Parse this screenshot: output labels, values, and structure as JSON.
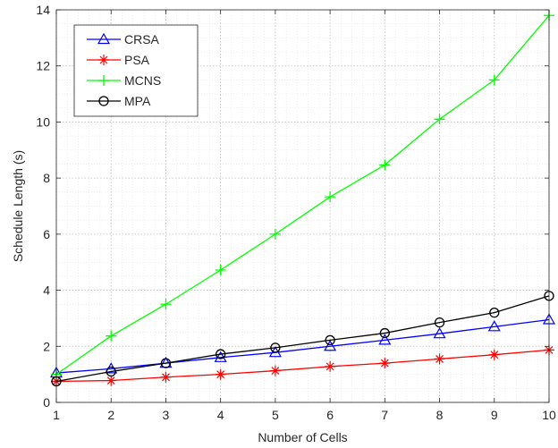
{
  "chart_data": {
    "type": "line",
    "title": "",
    "xlabel": "Number of Cells",
    "ylabel": "Schedule Length (s)",
    "xlim": [
      1,
      10
    ],
    "ylim": [
      0,
      14
    ],
    "xticks": [
      1,
      2,
      3,
      4,
      5,
      6,
      7,
      8,
      9,
      10
    ],
    "yticks": [
      0,
      2,
      4,
      6,
      8,
      10,
      12,
      14
    ],
    "grid": "major and minor dotted",
    "legend_position": "top-left",
    "x": [
      1,
      2,
      3,
      4,
      5,
      6,
      7,
      8,
      9,
      10
    ],
    "series": [
      {
        "name": "CRSA",
        "color": "#0000ff",
        "marker": "triangle",
        "values": [
          1.05,
          1.2,
          1.4,
          1.6,
          1.78,
          2.0,
          2.22,
          2.45,
          2.7,
          2.95
        ]
      },
      {
        "name": "PSA",
        "color": "#ff0000",
        "marker": "asterisk",
        "values": [
          0.75,
          0.78,
          0.9,
          1.0,
          1.13,
          1.28,
          1.4,
          1.55,
          1.7,
          1.87
        ]
      },
      {
        "name": "MCNS",
        "color": "#00ff00",
        "marker": "plus",
        "values": [
          1.0,
          2.37,
          3.5,
          4.72,
          6.0,
          7.33,
          8.47,
          10.1,
          11.5,
          13.8
        ]
      },
      {
        "name": "MPA",
        "color": "#000000",
        "marker": "circle",
        "values": [
          0.75,
          1.1,
          1.4,
          1.72,
          1.95,
          2.22,
          2.47,
          2.85,
          3.2,
          3.8
        ]
      }
    ]
  }
}
